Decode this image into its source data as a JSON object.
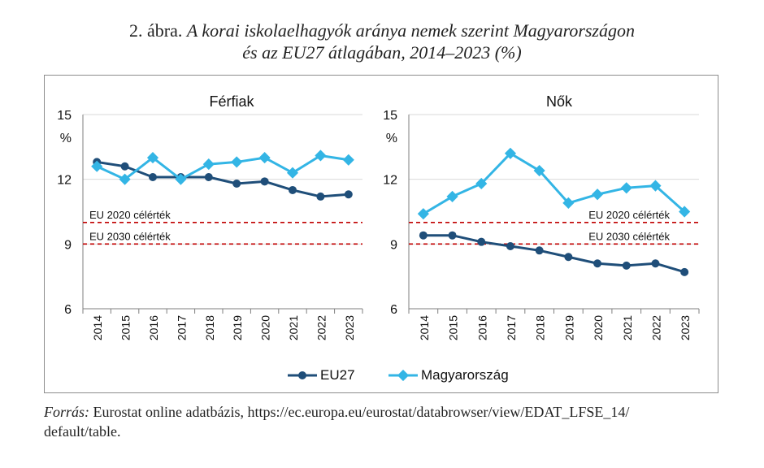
{
  "figure": {
    "number_label": "2. ábra.",
    "title_line1": "A korai iskolaelhagyók aránya nemek szerint Magyarországon",
    "title_line2": "és az EU27 átlagában, 2014–2023 (%)"
  },
  "source": {
    "label": "Forrás:",
    "text": "Eurostat online adatbázis, https://ec.europa.eu/eurostat/databrowser/view/EDAT_LFSE_14/",
    "text_line2": "default/table."
  },
  "colors": {
    "eu27": "#1f4e79",
    "hungary": "#33b5e5",
    "target": "#c00000",
    "grid": "#d9d9d9"
  },
  "chart_data": [
    {
      "type": "line",
      "title": "Férfiak",
      "ylabel": "%",
      "ylim": [
        6,
        15
      ],
      "yticks": [
        6,
        9,
        12,
        15
      ],
      "categories": [
        "2014",
        "2015",
        "2016",
        "2017",
        "2018",
        "2019",
        "2020",
        "2021",
        "2022",
        "2023"
      ],
      "series": [
        {
          "name": "EU27",
          "values": [
            12.8,
            12.6,
            12.1,
            12.1,
            12.1,
            11.8,
            11.9,
            11.5,
            11.2,
            11.3
          ]
        },
        {
          "name": "Magyarország",
          "values": [
            12.6,
            12.0,
            13.0,
            12.0,
            12.7,
            12.8,
            13.0,
            12.3,
            13.1,
            12.9
          ]
        }
      ],
      "reference_lines": [
        {
          "label": "EU 2020 célérték",
          "value": 10
        },
        {
          "label": "EU 2030 célérték",
          "value": 9
        }
      ]
    },
    {
      "type": "line",
      "title": "Nők",
      "ylabel": "%",
      "ylim": [
        6,
        15
      ],
      "yticks": [
        6,
        9,
        12,
        15
      ],
      "categories": [
        "2014",
        "2015",
        "2016",
        "2017",
        "2018",
        "2019",
        "2020",
        "2021",
        "2022",
        "2023"
      ],
      "series": [
        {
          "name": "EU27",
          "values": [
            9.4,
            9.4,
            9.1,
            8.9,
            8.7,
            8.4,
            8.1,
            8.0,
            8.1,
            7.7
          ]
        },
        {
          "name": "Magyarország",
          "values": [
            10.4,
            11.2,
            11.8,
            13.2,
            12.4,
            10.9,
            11.3,
            11.6,
            11.7,
            10.5
          ]
        }
      ],
      "reference_lines": [
        {
          "label": "EU 2020 célérték",
          "value": 10
        },
        {
          "label": "EU 2030 célérték",
          "value": 9
        }
      ]
    }
  ],
  "legend": {
    "placement": "bottom-center",
    "items": [
      {
        "label": "EU27"
      },
      {
        "label": "Magyarország"
      }
    ]
  }
}
